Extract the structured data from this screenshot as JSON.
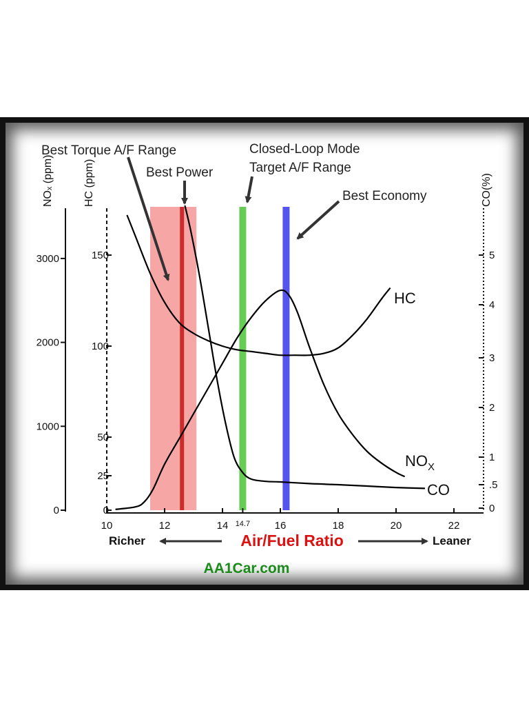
{
  "chart_data": {
    "type": "line",
    "title": "",
    "xlabel": "Air/Fuel Ratio",
    "xlim": [
      10,
      23
    ],
    "x_ticks": [
      10,
      12,
      14,
      14.7,
      16,
      18,
      20,
      22
    ],
    "x_tick_labels": [
      "10",
      "12",
      "14",
      "14.7",
      "16",
      "18",
      "20",
      "22"
    ],
    "direction_labels": {
      "left": "Richer",
      "right": "Leaner"
    },
    "axes": {
      "nox": {
        "label": "NOₓ (ppm)",
        "range": [
          0,
          3500
        ],
        "ticks": [
          0,
          1000,
          2000,
          3000
        ],
        "tick_labels": [
          "0",
          "1000",
          "2000",
          "3000"
        ]
      },
      "hc": {
        "label": "HC (ppm)",
        "range": [
          0,
          175
        ],
        "ticks": [
          0,
          25,
          50,
          100,
          150
        ],
        "tick_labels": [
          "0",
          "25",
          "50",
          "100",
          "150"
        ]
      },
      "co": {
        "label": "CO(%)",
        "range": [
          0,
          6
        ],
        "ticks": [
          0,
          0.5,
          1,
          2,
          3,
          4,
          5
        ],
        "tick_labels": [
          "0",
          ".5",
          "1",
          "2",
          "3",
          "4",
          "5"
        ]
      }
    },
    "series": [
      {
        "name": "HC",
        "axis": "hc",
        "color": "#000000",
        "x": [
          10.7,
          11.0,
          11.5,
          12.0,
          12.5,
          13.0,
          13.5,
          14.0,
          14.5,
          15.0,
          15.5,
          16.0,
          16.5,
          17.0,
          17.5,
          18.0,
          18.5,
          19.0,
          19.5,
          19.8
        ],
        "y": [
          172,
          160,
          140,
          124,
          113,
          107,
          103,
          100,
          98,
          97,
          96,
          95,
          95,
          95,
          96,
          99,
          106,
          115,
          126,
          132
        ]
      },
      {
        "name": "CO",
        "axis": "co",
        "color": "#000000",
        "x": [
          12.7,
          12.9,
          13.2,
          13.5,
          13.8,
          14.1,
          14.4,
          14.7,
          15.0,
          15.5,
          16.0,
          17.0,
          18.0,
          19.0,
          20.0,
          21.0
        ],
        "y": [
          6.0,
          5.5,
          4.6,
          3.6,
          2.6,
          1.7,
          1.0,
          0.72,
          0.6,
          0.56,
          0.55,
          0.52,
          0.5,
          0.47,
          0.44,
          0.42
        ]
      },
      {
        "name": "NOₓ",
        "axis": "nox",
        "color": "#000000",
        "x": [
          10.3,
          11.0,
          11.3,
          11.6,
          12.0,
          12.5,
          13.0,
          13.5,
          14.0,
          14.5,
          15.0,
          15.5,
          16.0,
          16.3,
          16.6,
          17.0,
          17.5,
          18.0,
          18.5,
          19.0,
          19.5,
          20.0,
          20.3
        ],
        "y": [
          10,
          40,
          100,
          250,
          550,
          850,
          1150,
          1450,
          1750,
          2050,
          2300,
          2500,
          2620,
          2560,
          2350,
          1950,
          1500,
          1150,
          900,
          700,
          560,
          450,
          400
        ]
      }
    ],
    "bands": [
      {
        "label": "Best Torque A/F Range",
        "x0": 11.5,
        "x1": 13.1,
        "color": "#f7a6a6"
      },
      {
        "label": "Best Power",
        "x": 12.6,
        "color": "#cc2b2b"
      },
      {
        "label": "Closed-Loop Mode Target A/F Range",
        "x": 14.7,
        "color": "#66cc55"
      },
      {
        "label": "Best Economy",
        "x": 16.2,
        "color": "#5555ee"
      }
    ],
    "annotations": {
      "torque": "Best Torque A/F Range",
      "power": "Best Power",
      "closed_loop_1": "Closed-Loop Mode",
      "closed_loop_2": "Target A/F Range",
      "economy": "Best Economy"
    },
    "series_labels": {
      "hc": "HC",
      "nox": "NO",
      "nox_sub": "X",
      "co": "CO"
    },
    "grid": false,
    "legend": "none",
    "credit": "AA1Car.com",
    "accent_colors": {
      "axis_title": "#dd1111",
      "credit": "#1a8a1a"
    }
  }
}
